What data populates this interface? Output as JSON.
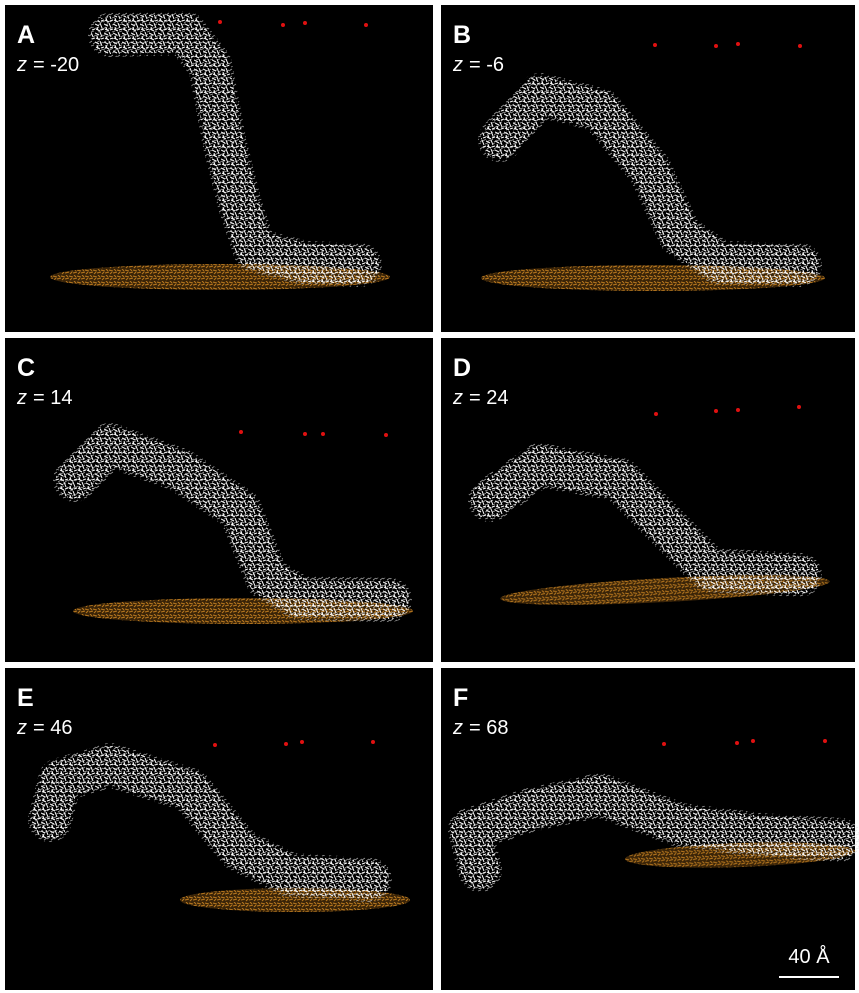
{
  "panels": [
    {
      "letter": "A",
      "variable": "z",
      "value_text": "= -20"
    },
    {
      "letter": "B",
      "variable": "z",
      "value_text": "= -6"
    },
    {
      "letter": "C",
      "variable": "z",
      "value_text": "= 14"
    },
    {
      "letter": "D",
      "variable": "z",
      "value_text": "= 24"
    },
    {
      "letter": "E",
      "variable": "z",
      "value_text": "= 46"
    },
    {
      "letter": "F",
      "variable": "z",
      "value_text": "= 68"
    }
  ],
  "scale_bar": "40 Å"
}
